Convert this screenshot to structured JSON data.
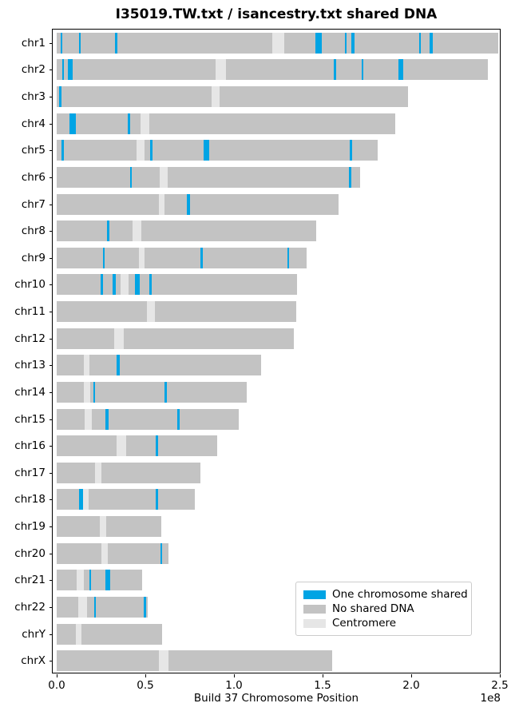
{
  "title": "I35019.TW.txt / isancestry.txt shared DNA",
  "colors": {
    "shared": "#00A4E4",
    "no_shared": "#C3C3C3",
    "centromere": "#E6E6E6",
    "axis": "#000000",
    "legend_border": "#CCCCCC"
  },
  "axis": {
    "xlabel": "Build 37 Chromosome Position",
    "offset_label": "1e8",
    "tick_labels": [
      "0.0",
      "0.5",
      "1.0",
      "1.5",
      "2.0",
      "2.5"
    ],
    "tick_values_mb": [
      0,
      50,
      100,
      150,
      200,
      250
    ]
  },
  "legend": {
    "position": "lower right",
    "items": [
      {
        "label": "One chromosome shared",
        "color_key": "shared"
      },
      {
        "label": "No shared DNA",
        "color_key": "no_shared"
      },
      {
        "label": "Centromere",
        "color_key": "centromere"
      }
    ]
  },
  "chart_data": {
    "type": "bar",
    "orientation": "horizontal",
    "title": "I35019.TW.txt / isancestry.txt shared DNA",
    "xlabel": "Build 37 Chromosome Position",
    "xlim_mb": [
      0,
      250
    ],
    "grid": false,
    "units": "Mb",
    "rows": [
      {
        "name": "chr1",
        "length_mb": 249.3,
        "centromere_mb": [
          121.5,
          128.5
        ],
        "shared_mb": [
          [
            2.3,
            3.3
          ],
          [
            12.4,
            13.5
          ],
          [
            33.0,
            34.2
          ],
          [
            145.9,
            149.5
          ],
          [
            162.5,
            163.5
          ],
          [
            166.0,
            167.8
          ],
          [
            204.3,
            205.4
          ],
          [
            210.2,
            212.3
          ]
        ]
      },
      {
        "name": "chr2",
        "length_mb": 243.2,
        "centromere_mb": [
          89.5,
          95.5
        ],
        "shared_mb": [
          [
            3.1,
            4.1
          ],
          [
            6.3,
            8.8
          ],
          [
            156.4,
            157.6
          ],
          [
            172.0,
            173.2
          ],
          [
            192.6,
            195.5
          ]
        ]
      },
      {
        "name": "chr3",
        "length_mb": 198.0,
        "centromere_mb": [
          87.5,
          92.0
        ],
        "shared_mb": [
          [
            1.5,
            2.6
          ]
        ]
      },
      {
        "name": "chr4",
        "length_mb": 191.2,
        "centromere_mb": [
          47.5,
          52.3
        ],
        "shared_mb": [
          [
            7.3,
            10.7
          ],
          [
            40.3,
            41.5
          ]
        ]
      },
      {
        "name": "chr5",
        "length_mb": 180.9,
        "centromere_mb": [
          45.1,
          49.7
        ],
        "shared_mb": [
          [
            2.7,
            3.9
          ],
          [
            52.8,
            54.0
          ],
          [
            82.8,
            86.1
          ],
          [
            165.5,
            166.7
          ]
        ]
      },
      {
        "name": "chr6",
        "length_mb": 171.1,
        "centromere_mb": [
          58.2,
          62.4
        ],
        "shared_mb": [
          [
            41.3,
            42.5
          ],
          [
            165.0,
            166.2
          ]
        ]
      },
      {
        "name": "chr7",
        "length_mb": 159.1,
        "centromere_mb": [
          57.7,
          60.9
        ],
        "shared_mb": [
          [
            73.4,
            75.1
          ]
        ]
      },
      {
        "name": "chr8",
        "length_mb": 146.4,
        "centromere_mb": [
          42.7,
          47.7
        ],
        "shared_mb": [
          [
            28.6,
            29.8
          ]
        ]
      },
      {
        "name": "chr9",
        "length_mb": 141.2,
        "centromere_mb": [
          46.4,
          49.7
        ],
        "shared_mb": [
          [
            26.0,
            27.2
          ],
          [
            81.0,
            82.3
          ],
          [
            130.0,
            131.3
          ]
        ]
      },
      {
        "name": "chr10",
        "length_mb": 135.5,
        "centromere_mb": [
          36.0,
          40.5
        ],
        "shared_mb": [
          [
            24.8,
            26.1
          ],
          [
            31.5,
            33.3
          ],
          [
            44.1,
            46.9
          ],
          [
            52.3,
            53.7
          ]
        ]
      },
      {
        "name": "chr11",
        "length_mb": 135.0,
        "centromere_mb": [
          50.8,
          55.4
        ],
        "shared_mb": []
      },
      {
        "name": "chr12",
        "length_mb": 133.9,
        "centromere_mb": [
          32.4,
          37.7
        ],
        "shared_mb": []
      },
      {
        "name": "chr13",
        "length_mb": 115.2,
        "centromere_mb": [
          15.3,
          18.6
        ],
        "shared_mb": [
          [
            33.7,
            35.6
          ]
        ]
      },
      {
        "name": "chr14",
        "length_mb": 107.3,
        "centromere_mb": [
          15.3,
          18.9
        ],
        "shared_mb": [
          [
            20.5,
            21.5
          ],
          [
            61.0,
            62.1
          ]
        ]
      },
      {
        "name": "chr15",
        "length_mb": 102.5,
        "centromere_mb": [
          15.6,
          20.0
        ],
        "shared_mb": [
          [
            27.7,
            29.4
          ],
          [
            68.0,
            69.2
          ]
        ]
      },
      {
        "name": "chr16",
        "length_mb": 90.4,
        "centromere_mb": [
          34.0,
          39.0
        ],
        "shared_mb": [
          [
            56.0,
            57.2
          ]
        ]
      },
      {
        "name": "chr17",
        "length_mb": 81.2,
        "centromere_mb": [
          21.5,
          25.1
        ],
        "shared_mb": []
      },
      {
        "name": "chr18",
        "length_mb": 78.1,
        "centromere_mb": [
          14.8,
          18.2
        ],
        "shared_mb": [
          [
            12.8,
            14.7
          ],
          [
            56.0,
            57.0
          ]
        ]
      },
      {
        "name": "chr19",
        "length_mb": 59.1,
        "centromere_mb": [
          24.1,
          27.9
        ],
        "shared_mb": []
      },
      {
        "name": "chr20",
        "length_mb": 63.0,
        "centromere_mb": [
          25.4,
          28.8
        ],
        "shared_mb": [
          [
            58.6,
            59.6
          ]
        ]
      },
      {
        "name": "chr21",
        "length_mb": 48.1,
        "centromere_mb": [
          11.3,
          15.3
        ],
        "shared_mb": [
          [
            18.4,
            19.4
          ],
          [
            27.7,
            30.2
          ]
        ]
      },
      {
        "name": "chr22",
        "length_mb": 51.3,
        "centromere_mb": [
          12.0,
          17.0
        ],
        "shared_mb": [
          [
            21.0,
            22.2
          ],
          [
            49.2,
            50.3
          ]
        ]
      },
      {
        "name": "chrY",
        "length_mb": 59.4,
        "centromere_mb": [
          11.0,
          13.9
        ],
        "shared_mb": []
      },
      {
        "name": "chrX",
        "length_mb": 155.3,
        "centromere_mb": [
          57.7,
          63.0
        ],
        "shared_mb": []
      }
    ]
  }
}
